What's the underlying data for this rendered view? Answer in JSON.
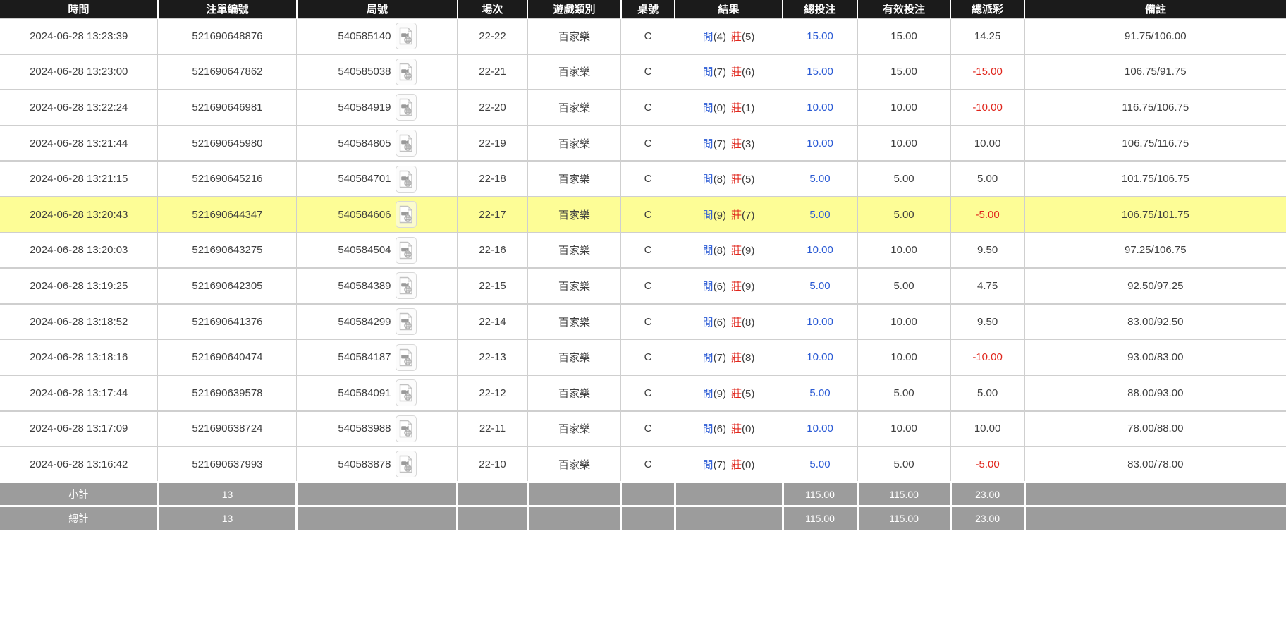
{
  "colors": {
    "header_bg": "#1b1b1b",
    "header_text": "#ffffff",
    "row_text": "#3f3f3f",
    "highlight_yellow": "#fdfd96",
    "footer_bg": "#9c9c9c",
    "footer_text": "#ffffff",
    "player_blue": "#2a5ad4",
    "banker_red": "#e0261c",
    "grid_line": "#cfcfcf"
  },
  "table": {
    "columns": [
      {
        "key": "time",
        "label": "時間",
        "width": "12.28%"
      },
      {
        "key": "bet_id",
        "label": "注單編號",
        "width": "10.80%"
      },
      {
        "key": "round_id",
        "label": "局號",
        "width": "12.50%"
      },
      {
        "key": "session",
        "label": "場次",
        "width": "5.43%"
      },
      {
        "key": "game_type",
        "label": "遊戲類別",
        "width": "7.29%"
      },
      {
        "key": "table_no",
        "label": "桌號",
        "width": "4.17%"
      },
      {
        "key": "result",
        "label": "結果",
        "width": "8.39%"
      },
      {
        "key": "total_bet",
        "label": "總投注",
        "width": "5.81%"
      },
      {
        "key": "valid_bet",
        "label": "有效投注",
        "width": "7.24%"
      },
      {
        "key": "total_payout",
        "label": "總派彩",
        "width": "5.76%"
      },
      {
        "key": "remark",
        "label": "備註",
        "width": "20.33%"
      }
    ],
    "result_labels": {
      "player": "閒",
      "banker": "莊"
    },
    "icons": {
      "round_video": "video-file-icon"
    },
    "rows": [
      {
        "time": "2024-06-28 13:23:39",
        "bet_id": "521690648876",
        "round_id": "540585140",
        "session": "22-22",
        "game_type": "百家樂",
        "table_no": "C",
        "result": {
          "player": "4",
          "banker": "5"
        },
        "total_bet": "15.00",
        "valid_bet": "15.00",
        "total_payout": "14.25",
        "remark": "91.75/106.00",
        "highlighted": false
      },
      {
        "time": "2024-06-28 13:23:00",
        "bet_id": "521690647862",
        "round_id": "540585038",
        "session": "22-21",
        "game_type": "百家樂",
        "table_no": "C",
        "result": {
          "player": "7",
          "banker": "6"
        },
        "total_bet": "15.00",
        "valid_bet": "15.00",
        "total_payout": "-15.00",
        "remark": "106.75/91.75",
        "highlighted": false
      },
      {
        "time": "2024-06-28 13:22:24",
        "bet_id": "521690646981",
        "round_id": "540584919",
        "session": "22-20",
        "game_type": "百家樂",
        "table_no": "C",
        "result": {
          "player": "0",
          "banker": "1"
        },
        "total_bet": "10.00",
        "valid_bet": "10.00",
        "total_payout": "-10.00",
        "remark": "116.75/106.75",
        "highlighted": false
      },
      {
        "time": "2024-06-28 13:21:44",
        "bet_id": "521690645980",
        "round_id": "540584805",
        "session": "22-19",
        "game_type": "百家樂",
        "table_no": "C",
        "result": {
          "player": "7",
          "banker": "3"
        },
        "total_bet": "10.00",
        "valid_bet": "10.00",
        "total_payout": "10.00",
        "remark": "106.75/116.75",
        "highlighted": false
      },
      {
        "time": "2024-06-28 13:21:15",
        "bet_id": "521690645216",
        "round_id": "540584701",
        "session": "22-18",
        "game_type": "百家樂",
        "table_no": "C",
        "result": {
          "player": "8",
          "banker": "5"
        },
        "total_bet": "5.00",
        "valid_bet": "5.00",
        "total_payout": "5.00",
        "remark": "101.75/106.75",
        "highlighted": false
      },
      {
        "time": "2024-06-28 13:20:43",
        "bet_id": "521690644347",
        "round_id": "540584606",
        "session": "22-17",
        "game_type": "百家樂",
        "table_no": "C",
        "result": {
          "player": "9",
          "banker": "7"
        },
        "total_bet": "5.00",
        "valid_bet": "5.00",
        "total_payout": "-5.00",
        "remark": "106.75/101.75",
        "highlighted": true
      },
      {
        "time": "2024-06-28 13:20:03",
        "bet_id": "521690643275",
        "round_id": "540584504",
        "session": "22-16",
        "game_type": "百家樂",
        "table_no": "C",
        "result": {
          "player": "8",
          "banker": "9"
        },
        "total_bet": "10.00",
        "valid_bet": "10.00",
        "total_payout": "9.50",
        "remark": "97.25/106.75",
        "highlighted": false
      },
      {
        "time": "2024-06-28 13:19:25",
        "bet_id": "521690642305",
        "round_id": "540584389",
        "session": "22-15",
        "game_type": "百家樂",
        "table_no": "C",
        "result": {
          "player": "6",
          "banker": "9"
        },
        "total_bet": "5.00",
        "valid_bet": "5.00",
        "total_payout": "4.75",
        "remark": "92.50/97.25",
        "highlighted": false
      },
      {
        "time": "2024-06-28 13:18:52",
        "bet_id": "521690641376",
        "round_id": "540584299",
        "session": "22-14",
        "game_type": "百家樂",
        "table_no": "C",
        "result": {
          "player": "6",
          "banker": "8"
        },
        "total_bet": "10.00",
        "valid_bet": "10.00",
        "total_payout": "9.50",
        "remark": "83.00/92.50",
        "highlighted": false
      },
      {
        "time": "2024-06-28 13:18:16",
        "bet_id": "521690640474",
        "round_id": "540584187",
        "session": "22-13",
        "game_type": "百家樂",
        "table_no": "C",
        "result": {
          "player": "7",
          "banker": "8"
        },
        "total_bet": "10.00",
        "valid_bet": "10.00",
        "total_payout": "-10.00",
        "remark": "93.00/83.00",
        "highlighted": false
      },
      {
        "time": "2024-06-28 13:17:44",
        "bet_id": "521690639578",
        "round_id": "540584091",
        "session": "22-12",
        "game_type": "百家樂",
        "table_no": "C",
        "result": {
          "player": "9",
          "banker": "5"
        },
        "total_bet": "5.00",
        "valid_bet": "5.00",
        "total_payout": "5.00",
        "remark": "88.00/93.00",
        "highlighted": false
      },
      {
        "time": "2024-06-28 13:17:09",
        "bet_id": "521690638724",
        "round_id": "540583988",
        "session": "22-11",
        "game_type": "百家樂",
        "table_no": "C",
        "result": {
          "player": "6",
          "banker": "0"
        },
        "total_bet": "10.00",
        "valid_bet": "10.00",
        "total_payout": "10.00",
        "remark": "78.00/88.00",
        "highlighted": false
      },
      {
        "time": "2024-06-28 13:16:42",
        "bet_id": "521690637993",
        "round_id": "540583878",
        "session": "22-10",
        "game_type": "百家樂",
        "table_no": "C",
        "result": {
          "player": "7",
          "banker": "0"
        },
        "total_bet": "5.00",
        "valid_bet": "5.00",
        "total_payout": "-5.00",
        "remark": "83.00/78.00",
        "highlighted": false
      }
    ],
    "footer": [
      {
        "label": "小計",
        "count": "13",
        "total_bet": "115.00",
        "valid_bet": "115.00",
        "total_payout": "23.00"
      },
      {
        "label": "總計",
        "count": "13",
        "total_bet": "115.00",
        "valid_bet": "115.00",
        "total_payout": "23.00"
      }
    ]
  }
}
